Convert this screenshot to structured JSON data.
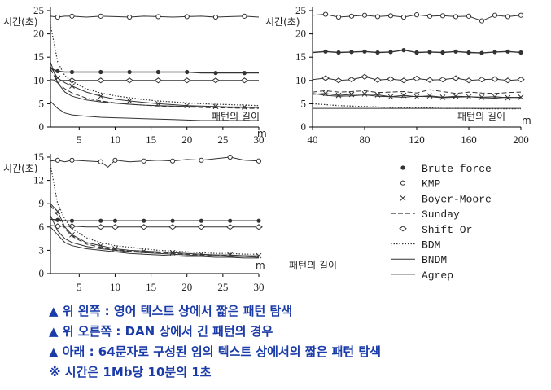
{
  "chart_data": [
    {
      "type": "line",
      "ylabel": "시간(초)",
      "xlabel": "패턴의 길이",
      "x_unit": "m",
      "xlim": [
        1,
        30
      ],
      "ylim": [
        0,
        25
      ],
      "x_ticks": [
        5,
        10,
        15,
        20,
        25,
        30
      ],
      "y_ticks": [
        0,
        5,
        10,
        15,
        20,
        25
      ],
      "x": [
        1,
        2,
        3,
        4,
        6,
        8,
        10,
        12,
        14,
        16,
        18,
        20,
        22,
        24,
        26,
        28,
        30
      ],
      "series": [
        {
          "name": "Brute force",
          "values": [
            12.6,
            12.0,
            11.8,
            11.8,
            11.8,
            11.8,
            11.8,
            11.8,
            11.8,
            11.8,
            11.8,
            11.8,
            11.6,
            11.6,
            11.6,
            11.6,
            11.6
          ]
        },
        {
          "name": "KMP",
          "values": [
            23.8,
            23.6,
            23.8,
            23.8,
            23.6,
            23.8,
            23.7,
            23.6,
            23.8,
            23.7,
            23.6,
            23.7,
            23.8,
            23.6,
            23.7,
            23.8,
            23.6
          ]
        },
        {
          "name": "Boyer-Moore",
          "values": [
            13.0,
            10.5,
            9.5,
            8.8,
            7.5,
            6.6,
            6.0,
            5.6,
            5.3,
            5.0,
            4.8,
            4.6,
            4.5,
            4.4,
            4.3,
            4.3,
            4.2
          ]
        },
        {
          "name": "Sunday",
          "values": [
            12.5,
            9.5,
            8.2,
            7.3,
            6.2,
            5.6,
            5.2,
            4.9,
            4.7,
            4.5,
            4.4,
            4.3,
            4.2,
            4.1,
            4.1,
            4.0,
            4.0
          ]
        },
        {
          "name": "Shift-Or",
          "values": [
            10.2,
            10.0,
            10.0,
            10.0,
            10.0,
            10.0,
            10.0,
            10.0,
            10.0,
            10.0,
            10.0,
            10.0,
            10.0,
            10.0,
            10.0,
            10.0,
            10.0
          ]
        },
        {
          "name": "BDM",
          "values": [
            22.0,
            14.0,
            11.0,
            9.8,
            8.2,
            7.3,
            6.7,
            6.3,
            5.9,
            5.6,
            5.4,
            5.2,
            5.0,
            4.9,
            4.8,
            4.7,
            4.6
          ]
        },
        {
          "name": "BNDM",
          "values": [
            14.0,
            9.5,
            7.5,
            6.6,
            5.8,
            5.4,
            5.1,
            4.9,
            4.7,
            4.6,
            4.5,
            4.4,
            4.3,
            4.3,
            4.2,
            4.2,
            4.2
          ]
        },
        {
          "name": "Agrep",
          "values": [
            5.5,
            4.0,
            3.0,
            2.6,
            2.3,
            2.1,
            2.0,
            1.9,
            1.8,
            1.7,
            1.6,
            1.5,
            1.4,
            1.4,
            1.4,
            1.4,
            1.4
          ]
        }
      ]
    },
    {
      "type": "line",
      "ylabel": "시간(초)",
      "xlabel": "패턴의 길이",
      "x_unit": "m",
      "xlim": [
        40,
        200
      ],
      "ylim": [
        0,
        25
      ],
      "x_ticks": [
        40,
        80,
        120,
        160,
        200
      ],
      "y_ticks": [
        0,
        5,
        10,
        15,
        20,
        25
      ],
      "x": [
        40,
        50,
        60,
        70,
        80,
        90,
        100,
        110,
        120,
        130,
        140,
        150,
        160,
        170,
        180,
        190,
        200
      ],
      "series": [
        {
          "name": "Brute force",
          "values": [
            16.0,
            16.2,
            16.0,
            16.1,
            16.2,
            16.0,
            16.1,
            16.5,
            16.0,
            16.1,
            16.0,
            16.2,
            16.0,
            15.9,
            16.1,
            16.2,
            16.0
          ]
        },
        {
          "name": "KMP",
          "values": [
            24.0,
            24.2,
            23.6,
            23.8,
            24.0,
            23.7,
            23.9,
            23.6,
            24.1,
            23.8,
            23.9,
            23.7,
            23.8,
            22.8,
            24.0,
            23.7,
            24.0
          ]
        },
        {
          "name": "Boyer-Moore",
          "values": [
            7.0,
            7.2,
            6.8,
            7.0,
            7.1,
            6.9,
            6.5,
            6.8,
            6.5,
            6.7,
            6.4,
            6.6,
            6.5,
            6.4,
            6.5,
            6.3,
            6.4
          ]
        },
        {
          "name": "Sunday",
          "values": [
            7.5,
            7.8,
            7.5,
            7.6,
            7.8,
            7.4,
            7.5,
            7.6,
            7.3,
            8.0,
            7.6,
            7.2,
            7.5,
            7.3,
            7.2,
            7.4,
            7.5
          ]
        },
        {
          "name": "Shift-Or",
          "values": [
            10.2,
            10.5,
            10.0,
            10.2,
            10.8,
            10.1,
            10.3,
            10.0,
            10.4,
            10.1,
            10.2,
            10.5,
            10.0,
            10.2,
            10.3,
            10.0,
            10.2
          ]
        },
        {
          "name": "BDM",
          "values": [
            5.0,
            4.8,
            4.6,
            4.5,
            4.4,
            4.3,
            4.2,
            4.2,
            4.1,
            4.1,
            4.0,
            4.0,
            4.0,
            3.9,
            3.9,
            3.9,
            3.9
          ]
        },
        {
          "name": "BNDM",
          "values": [
            7.2,
            6.8,
            6.6,
            6.7,
            6.9,
            6.6,
            6.5,
            6.4,
            6.6,
            6.5,
            6.3,
            6.4,
            6.5,
            6.3,
            6.2,
            6.4,
            6.3
          ]
        },
        {
          "name": "Agrep",
          "values": [
            4.0,
            4.0,
            4.0,
            4.0,
            4.0,
            4.0,
            4.0,
            4.0,
            4.0,
            4.0,
            4.0,
            4.0,
            4.0,
            4.0,
            4.0,
            4.0,
            4.0
          ]
        }
      ]
    },
    {
      "type": "line",
      "ylabel": "시간(초)",
      "xlabel": "패턴의 길이",
      "x_unit": "m",
      "xlim": [
        1,
        30
      ],
      "ylim": [
        0,
        15
      ],
      "x_ticks": [
        5,
        10,
        15,
        20,
        25,
        30
      ],
      "y_ticks": [
        0,
        3,
        6,
        9,
        12,
        15
      ],
      "x": [
        1,
        2,
        3,
        4,
        6,
        8,
        9,
        10,
        12,
        14,
        16,
        18,
        20,
        22,
        24,
        26,
        28,
        30
      ],
      "series": [
        {
          "name": "Brute force",
          "values": [
            7.0,
            6.9,
            6.8,
            6.8,
            6.8,
            6.8,
            6.8,
            6.8,
            6.8,
            6.8,
            6.8,
            6.8,
            6.8,
            6.8,
            6.8,
            6.8,
            6.8,
            6.8
          ]
        },
        {
          "name": "KMP",
          "values": [
            14.5,
            14.6,
            14.4,
            14.6,
            14.5,
            14.4,
            13.7,
            14.6,
            14.4,
            14.5,
            14.6,
            14.5,
            14.7,
            14.6,
            14.8,
            15.0,
            14.6,
            14.5
          ]
        },
        {
          "name": "Boyer-Moore",
          "values": [
            9.0,
            8.0,
            6.0,
            5.0,
            4.0,
            3.6,
            3.4,
            3.2,
            3.0,
            2.9,
            2.8,
            2.7,
            2.6,
            2.5,
            2.4,
            2.4,
            2.3,
            2.3
          ]
        },
        {
          "name": "Sunday",
          "values": [
            8.8,
            7.5,
            5.8,
            4.8,
            3.8,
            3.4,
            3.2,
            3.1,
            2.9,
            2.8,
            2.7,
            2.6,
            2.5,
            2.4,
            2.4,
            2.3,
            2.3,
            2.2
          ]
        },
        {
          "name": "Shift-Or",
          "values": [
            6.2,
            6.1,
            6.1,
            6.1,
            6.0,
            6.0,
            6.0,
            6.0,
            6.0,
            6.0,
            6.0,
            6.0,
            6.0,
            6.0,
            6.0,
            6.0,
            6.0,
            6.0
          ]
        },
        {
          "name": "BDM",
          "values": [
            14.0,
            9.0,
            7.0,
            5.8,
            4.6,
            4.0,
            3.8,
            3.6,
            3.4,
            3.2,
            3.0,
            2.9,
            2.8,
            2.7,
            2.6,
            2.6,
            2.5,
            2.5
          ]
        },
        {
          "name": "BNDM",
          "values": [
            7.5,
            5.5,
            4.5,
            4.0,
            3.5,
            3.2,
            3.1,
            3.0,
            2.8,
            2.7,
            2.6,
            2.5,
            2.4,
            2.3,
            2.3,
            2.2,
            2.2,
            2.1
          ]
        },
        {
          "name": "Agrep",
          "values": [
            6.0,
            5.0,
            4.0,
            3.6,
            3.2,
            3.0,
            2.9,
            2.8,
            2.6,
            2.5,
            2.4,
            2.3,
            2.2,
            2.2,
            2.1,
            2.1,
            2.0,
            2.0
          ]
        }
      ]
    }
  ],
  "legend": {
    "items": [
      {
        "name": "Brute force",
        "marker": "filled-circle",
        "dash": "solid"
      },
      {
        "name": "KMP",
        "marker": "open-circle",
        "dash": "solid"
      },
      {
        "name": "Boyer-Moore",
        "marker": "cross",
        "dash": "solid"
      },
      {
        "name": "Sunday",
        "marker": "none",
        "dash": "dashed"
      },
      {
        "name": "Shift-Or",
        "marker": "diamond",
        "dash": "solid"
      },
      {
        "name": "BDM",
        "marker": "none",
        "dash": "dotted"
      },
      {
        "name": "BNDM",
        "marker": "none",
        "dash": "solid"
      },
      {
        "name": "Agrep",
        "marker": "none",
        "dash": "solid"
      }
    ]
  },
  "notes": [
    "▲ 위 왼쪽 : 영어 텍스트 상에서 짧은 패턴 탐색",
    "▲ 위 오른쪽 : DAN 상에서 긴 패턴의 경우",
    "▲ 아래 : 64문자로 구성된 임의 텍스트 상에서의 짧은 패턴 탐색",
    "※ 시간은 1Mb당 10분의 1초"
  ],
  "colors": {
    "line": "#333333",
    "note_text": "#1a3ba8"
  }
}
